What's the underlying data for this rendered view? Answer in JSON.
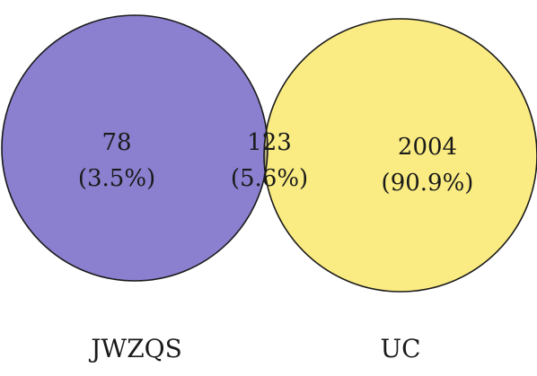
{
  "venn": {
    "sets": [
      {
        "name": "JWZQS",
        "color": "#8a80cf"
      },
      {
        "name": "UC",
        "color": "#faec82"
      }
    ],
    "overlap_color": "#b5ad7e",
    "outline_color": "#1a1a1a",
    "regions": {
      "left_only": {
        "count": "78",
        "percent": "(3.5%)"
      },
      "intersection": {
        "count": "123",
        "percent": "(5.6%)"
      },
      "right_only": {
        "count": "2004",
        "percent": "(90.9%)"
      }
    }
  }
}
